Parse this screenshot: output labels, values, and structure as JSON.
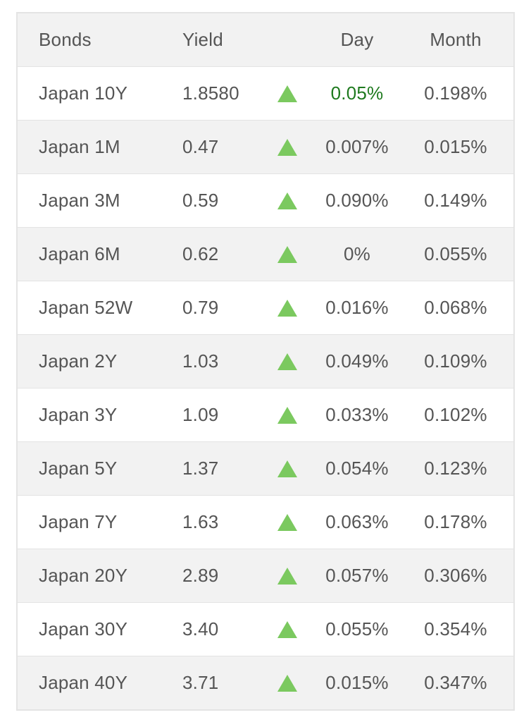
{
  "table": {
    "headers": {
      "bonds": "Bonds",
      "yield": "Yield",
      "day": "Day",
      "month": "Month"
    },
    "rows": [
      {
        "name": "Japan 10Y",
        "yield": "1.8580",
        "direction": "up-arrow-icon",
        "day": "0.05%",
        "month": "0.198%"
      },
      {
        "name": "Japan 1M",
        "yield": "0.47",
        "direction": "up-arrow-icon",
        "day": "0.007%",
        "month": "0.015%"
      },
      {
        "name": "Japan 3M",
        "yield": "0.59",
        "direction": "up-arrow-icon",
        "day": "0.090%",
        "month": "0.149%"
      },
      {
        "name": "Japan 6M",
        "yield": "0.62",
        "direction": "up-arrow-icon",
        "day": "0%",
        "month": "0.055%"
      },
      {
        "name": "Japan 52W",
        "yield": "0.79",
        "direction": "up-arrow-icon",
        "day": "0.016%",
        "month": "0.068%"
      },
      {
        "name": "Japan 2Y",
        "yield": "1.03",
        "direction": "up-arrow-icon",
        "day": "0.049%",
        "month": "0.109%"
      },
      {
        "name": "Japan 3Y",
        "yield": "1.09",
        "direction": "up-arrow-icon",
        "day": "0.033%",
        "month": "0.102%"
      },
      {
        "name": "Japan 5Y",
        "yield": "1.37",
        "direction": "up-arrow-icon",
        "day": "0.054%",
        "month": "0.123%"
      },
      {
        "name": "Japan 7Y",
        "yield": "1.63",
        "direction": "up-arrow-icon",
        "day": "0.063%",
        "month": "0.178%"
      },
      {
        "name": "Japan 20Y",
        "yield": "2.89",
        "direction": "up-arrow-icon",
        "day": "0.057%",
        "month": "0.306%"
      },
      {
        "name": "Japan 30Y",
        "yield": "3.40",
        "direction": "up-arrow-icon",
        "day": "0.055%",
        "month": "0.354%"
      },
      {
        "name": "Japan 40Y",
        "yield": "3.71",
        "direction": "up-arrow-icon",
        "day": "0.015%",
        "month": "0.347%"
      }
    ]
  },
  "colors": {
    "up_arrow": "#7bc95f",
    "highlight_day": "#1f7a1f",
    "header_bg": "#f2f2f2",
    "alt_row_bg": "#f2f2f2",
    "text": "#555555"
  }
}
